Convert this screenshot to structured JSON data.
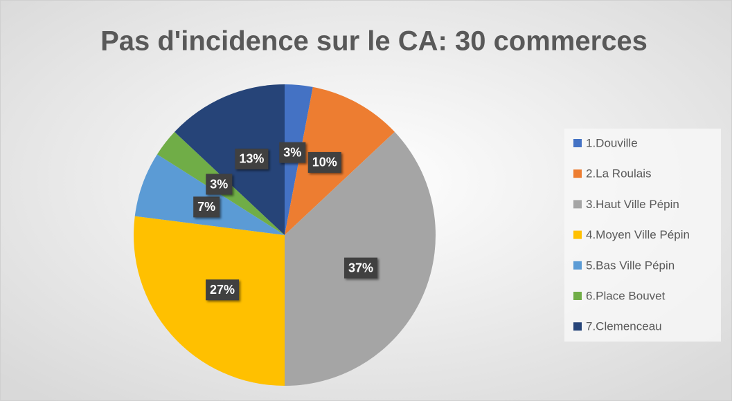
{
  "chart_data": {
    "type": "pie",
    "title": "Pas d'incidence sur le CA: 30 commerces",
    "categories": [
      "1.Douville",
      "2.La Roulais",
      "3.Haut Ville Pépin",
      "4.Moyen Ville Pépin",
      "5.Bas Ville Pépin",
      "6.Place Bouvet",
      "7.Clemenceau"
    ],
    "values": [
      3,
      10,
      37,
      27,
      7,
      3,
      13
    ],
    "value_labels": [
      "3%",
      "10%",
      "37%",
      "27%",
      "7%",
      "3%",
      "13%"
    ],
    "colors": [
      "#4472c4",
      "#ed7d31",
      "#a5a5a5",
      "#ffc000",
      "#5b9bd5",
      "#70ad47",
      "#264478"
    ],
    "legend": "right"
  }
}
